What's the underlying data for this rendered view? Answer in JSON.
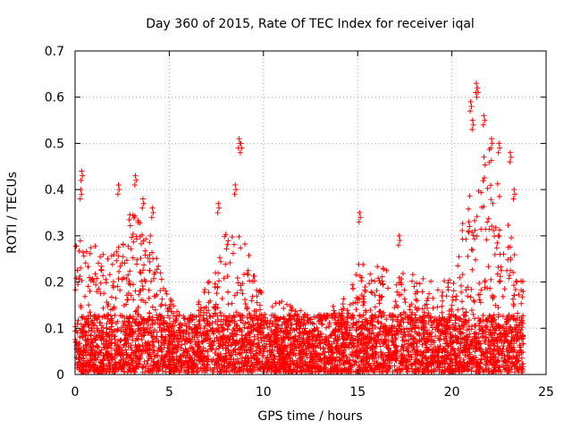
{
  "chart_data": {
    "type": "scatter",
    "title": "Day 360 of 2015, Rate Of TEC Index for receiver iqal",
    "xlabel": "GPS time / hours",
    "ylabel": "ROTI / TECUs",
    "xlim": [
      0,
      25
    ],
    "ylim": [
      0,
      0.7
    ],
    "x_ticks": [
      "0",
      "5",
      "10",
      "15",
      "20",
      "25"
    ],
    "y_ticks": [
      "0",
      "0.1",
      "0.2",
      "0.3",
      "0.4",
      "0.5",
      "0.6",
      "0.7"
    ],
    "grid": true,
    "marker": "+",
    "color": "#ff0000",
    "envelope_description": "approximate upper-envelope ROTI per hour of dense point cloud",
    "envelope_hours": [
      0,
      1,
      2,
      3,
      4,
      5,
      6,
      7,
      8,
      9,
      10,
      11,
      12,
      13,
      14,
      15,
      16,
      17,
      18,
      19,
      20,
      21,
      22,
      23,
      23.8
    ],
    "envelope_upper": [
      0.3,
      0.28,
      0.26,
      0.36,
      0.3,
      0.17,
      0.11,
      0.2,
      0.31,
      0.3,
      0.17,
      0.16,
      0.14,
      0.12,
      0.16,
      0.24,
      0.24,
      0.22,
      0.22,
      0.2,
      0.21,
      0.42,
      0.5,
      0.35,
      0.2
    ],
    "notable_points": [
      {
        "x": 0.35,
        "y": 0.44
      },
      {
        "x": 0.3,
        "y": 0.4
      },
      {
        "x": 2.3,
        "y": 0.41
      },
      {
        "x": 3.2,
        "y": 0.43
      },
      {
        "x": 3.6,
        "y": 0.38
      },
      {
        "x": 4.1,
        "y": 0.36
      },
      {
        "x": 7.6,
        "y": 0.37
      },
      {
        "x": 8.5,
        "y": 0.41
      },
      {
        "x": 8.7,
        "y": 0.51
      },
      {
        "x": 8.8,
        "y": 0.5
      },
      {
        "x": 15.1,
        "y": 0.35
      },
      {
        "x": 17.2,
        "y": 0.3
      },
      {
        "x": 20.9,
        "y": 0.33
      },
      {
        "x": 21.0,
        "y": 0.59
      },
      {
        "x": 21.1,
        "y": 0.55
      },
      {
        "x": 21.3,
        "y": 0.63
      },
      {
        "x": 21.35,
        "y": 0.62
      },
      {
        "x": 21.7,
        "y": 0.56
      },
      {
        "x": 22.1,
        "y": 0.51
      },
      {
        "x": 22.5,
        "y": 0.5
      },
      {
        "x": 23.1,
        "y": 0.48
      },
      {
        "x": 23.3,
        "y": 0.4
      }
    ]
  }
}
